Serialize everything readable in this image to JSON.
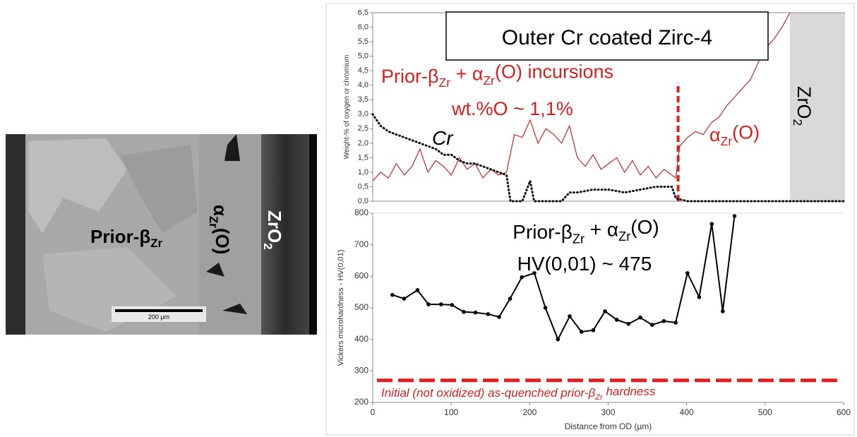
{
  "micrograph": {
    "matrix_label": [
      "Prior-β",
      "Zr"
    ],
    "alpha_label": [
      "α",
      "Zr",
      "(O)"
    ],
    "oxide_label": [
      "ZrO",
      "2"
    ],
    "scale_bar": "200 µm"
  },
  "chart_data": [
    {
      "type": "line",
      "ylabel": "Weight-% of oxygen or chromium",
      "xlim": [
        0,
        600
      ],
      "ylim": [
        0,
        6.5
      ],
      "yticks": [
        {
          "value": 0,
          "label": "0,0"
        },
        {
          "value": 0.5,
          "label": "0,5"
        },
        {
          "value": 1,
          "label": "1,0"
        },
        {
          "value": 1.5,
          "label": "1,5"
        },
        {
          "value": 2,
          "label": "2,0"
        },
        {
          "value": 2.5,
          "label": "2,5"
        },
        {
          "value": 3,
          "label": "3,0"
        },
        {
          "value": 3.5,
          "label": "3,5"
        },
        {
          "value": 4,
          "label": "4,0"
        },
        {
          "value": 4.5,
          "label": "4,5"
        },
        {
          "value": 5,
          "label": "5,0"
        },
        {
          "value": 5.5,
          "label": "5,5"
        },
        {
          "value": 6,
          "label": "6,0"
        },
        {
          "value": 6.5,
          "label": "6,5"
        }
      ],
      "shaded_xlim": [
        530,
        600
      ],
      "shade_color": "#d9d9d9",
      "boundary_x": 388,
      "boundary_top": 4.1,
      "boundary_color": "#e02020",
      "series": [
        {
          "color": "#c0282a",
          "style": "solid",
          "x": [
            0,
            10,
            20,
            30,
            40,
            50,
            60,
            70,
            80,
            90,
            100,
            110,
            120,
            130,
            140,
            150,
            160,
            170,
            180,
            190,
            200,
            210,
            220,
            230,
            240,
            250,
            260,
            270,
            280,
            290,
            300,
            310,
            320,
            330,
            340,
            350,
            360,
            370,
            380,
            385,
            390,
            400,
            410,
            420,
            430,
            440,
            450,
            460,
            470,
            480,
            490,
            500,
            510,
            520,
            530
          ],
          "values": [
            0.7,
            1.0,
            0.8,
            1.3,
            0.9,
            1.2,
            1.8,
            1.0,
            1.4,
            1.2,
            0.9,
            1.5,
            1.1,
            1.3,
            0.8,
            1.1,
            0.9,
            1.0,
            2.3,
            2.2,
            2.8,
            2.0,
            2.5,
            2.3,
            2.0,
            2.6,
            1.5,
            1.2,
            1.6,
            1.1,
            1.3,
            1.5,
            1.0,
            1.4,
            0.9,
            1.2,
            0.8,
            1.1,
            0.9,
            0.8,
            1.9,
            2.2,
            2.4,
            2.3,
            2.7,
            2.9,
            3.3,
            3.6,
            3.9,
            4.2,
            4.8,
            5.3,
            5.6,
            6.0,
            6.5
          ]
        },
        {
          "name": "Cr",
          "color": "#111111",
          "style": "dotted",
          "x": [
            0,
            10,
            20,
            30,
            40,
            50,
            60,
            70,
            80,
            90,
            100,
            110,
            120,
            130,
            140,
            150,
            160,
            170,
            175,
            190,
            200,
            205,
            240,
            250,
            260,
            280,
            300,
            320,
            340,
            360,
            380,
            385,
            400,
            500,
            600
          ],
          "values": [
            3.0,
            2.6,
            2.4,
            2.3,
            2.2,
            2.1,
            2.0,
            1.9,
            1.8,
            1.6,
            1.6,
            1.4,
            1.3,
            1.3,
            1.2,
            1.1,
            1.0,
            0.9,
            0.0,
            0.0,
            0.7,
            0.0,
            0.0,
            0.3,
            0.3,
            0.4,
            0.4,
            0.3,
            0.4,
            0.5,
            0.5,
            0.1,
            0.0,
            0.0,
            0.0
          ]
        }
      ],
      "annotations": [
        {
          "text": [
            "Outer Cr coated Zirc-4"
          ]
        },
        {
          "text": [
            "Prior-β",
            "Zr",
            " + α",
            "Zr",
            "(O) incursions"
          ]
        },
        {
          "text": [
            "wt.%O ~ 1,1%"
          ]
        },
        {
          "text": [
            "α",
            "Zr",
            "(O)"
          ]
        },
        {
          "text": [
            "ZrO",
            "2"
          ]
        }
      ]
    },
    {
      "type": "line",
      "xlabel": "Distance from OD (µm)",
      "ylabel": "Vickers microhardness - HV(0,01)",
      "xlim": [
        0,
        600
      ],
      "xticks": [
        0,
        100,
        200,
        300,
        400,
        500,
        600
      ],
      "ylim": [
        200,
        800
      ],
      "yticks": [
        200,
        300,
        400,
        500,
        600,
        700,
        800
      ],
      "reference_y": 270,
      "reference_color": "#e02020",
      "series": [
        {
          "color": "#000000",
          "style": "markers",
          "x": [
            25,
            40,
            57,
            71,
            87,
            101,
            116,
            131,
            147,
            161,
            175,
            190,
            206,
            220,
            236,
            251,
            266,
            281,
            296,
            311,
            326,
            341,
            356,
            371,
            386,
            401,
            416,
            432,
            446,
            461
          ],
          "values": [
            541,
            529,
            556,
            511,
            511,
            509,
            487,
            485,
            480,
            471,
            529,
            597,
            610,
            500,
            400,
            473,
            424,
            429,
            489,
            462,
            449,
            469,
            446,
            458,
            453,
            610,
            534,
            766,
            489,
            791
          ]
        }
      ],
      "annotations": [
        {
          "text": [
            "Prior-β",
            "Zr",
            " + α",
            "Zr",
            "(O)"
          ]
        },
        {
          "text": [
            "HV(0,01) ~ 475"
          ]
        },
        {
          "text": [
            "Initial (not oxidized) as-quenched prior-β",
            "Zr",
            " hardness"
          ]
        }
      ]
    }
  ]
}
